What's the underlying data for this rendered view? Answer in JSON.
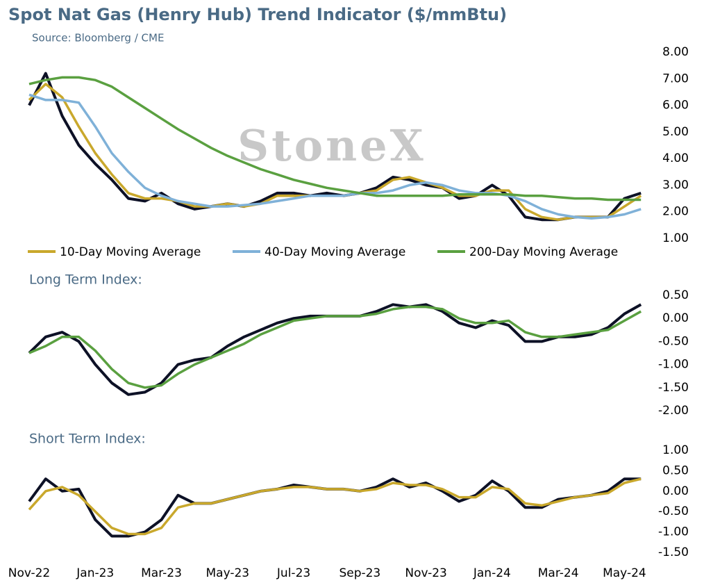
{
  "chart_data": [
    {
      "type": "line",
      "title": "Spot Nat Gas (Henry Hub) Trend Indicator ($/mmBtu)",
      "subtitle": "Source: Bloomberg / CME",
      "watermark": "StoneX",
      "x": [
        0,
        0.5,
        1,
        1.5,
        2,
        2.5,
        3,
        3.5,
        4,
        4.5,
        5,
        5.5,
        6,
        6.5,
        7,
        7.5,
        8,
        8.5,
        9,
        9.5,
        10,
        10.5,
        11,
        11.5,
        12,
        12.5,
        13,
        13.5,
        14,
        14.5,
        15,
        15.5,
        16,
        16.5,
        17,
        17.5,
        18,
        18.5
      ],
      "xlim": [
        0,
        18.6
      ],
      "ylim": [
        1,
        8
      ],
      "yticks": [
        {
          "value": 8,
          "label": "8.00"
        },
        {
          "value": 7,
          "label": "7.00"
        },
        {
          "value": 6,
          "label": "6.00"
        },
        {
          "value": 5,
          "label": "5.00"
        },
        {
          "value": 4,
          "label": "4.00"
        },
        {
          "value": 3,
          "label": "3.00"
        },
        {
          "value": 2,
          "label": "2.00"
        },
        {
          "value": 1,
          "label": "1.00"
        }
      ],
      "series": [
        {
          "color": "#0d1126",
          "values": [
            6.0,
            7.2,
            5.6,
            4.5,
            3.8,
            3.2,
            2.5,
            2.4,
            2.7,
            2.3,
            2.1,
            2.2,
            2.3,
            2.2,
            2.4,
            2.7,
            2.7,
            2.6,
            2.7,
            2.6,
            2.7,
            2.9,
            3.3,
            3.2,
            3.0,
            2.9,
            2.5,
            2.6,
            3.0,
            2.6,
            1.8,
            1.7,
            1.7,
            1.8,
            1.8,
            1.8,
            2.5,
            2.7
          ]
        },
        {
          "name": "10-Day Moving Average",
          "color": "#c9a82c",
          "values": [
            6.2,
            6.8,
            6.3,
            5.2,
            4.2,
            3.4,
            2.7,
            2.5,
            2.5,
            2.4,
            2.2,
            2.2,
            2.3,
            2.2,
            2.3,
            2.6,
            2.6,
            2.6,
            2.6,
            2.6,
            2.7,
            2.8,
            3.2,
            3.3,
            3.1,
            2.9,
            2.6,
            2.6,
            2.8,
            2.8,
            2.1,
            1.8,
            1.7,
            1.8,
            1.8,
            1.8,
            2.2,
            2.6
          ]
        },
        {
          "name": "40-Day Moving Average",
          "color": "#7fb1d8",
          "values": [
            6.4,
            6.2,
            6.2,
            6.1,
            5.2,
            4.2,
            3.5,
            2.9,
            2.6,
            2.4,
            2.3,
            2.2,
            2.2,
            2.25,
            2.3,
            2.4,
            2.5,
            2.6,
            2.6,
            2.6,
            2.7,
            2.7,
            2.8,
            3.0,
            3.1,
            3.0,
            2.8,
            2.7,
            2.7,
            2.6,
            2.4,
            2.1,
            1.9,
            1.8,
            1.75,
            1.8,
            1.9,
            2.1
          ]
        },
        {
          "name": "200-Day Moving Average",
          "color": "#5aa040",
          "values": [
            6.8,
            6.95,
            7.05,
            7.05,
            6.95,
            6.7,
            6.3,
            5.9,
            5.5,
            5.1,
            4.75,
            4.4,
            4.1,
            3.85,
            3.6,
            3.4,
            3.2,
            3.05,
            2.9,
            2.8,
            2.7,
            2.6,
            2.6,
            2.6,
            2.6,
            2.6,
            2.65,
            2.65,
            2.65,
            2.65,
            2.6,
            2.6,
            2.55,
            2.5,
            2.5,
            2.45,
            2.45,
            2.45
          ]
        }
      ]
    },
    {
      "type": "line",
      "title": "Long Term Index:",
      "x": [
        0,
        0.5,
        1,
        1.5,
        2,
        2.5,
        3,
        3.5,
        4,
        4.5,
        5,
        5.5,
        6,
        6.5,
        7,
        7.5,
        8,
        8.5,
        9,
        9.5,
        10,
        10.5,
        11,
        11.5,
        12,
        12.5,
        13,
        13.5,
        14,
        14.5,
        15,
        15.5,
        16,
        16.5,
        17,
        17.5,
        18,
        18.5
      ],
      "xlim": [
        0,
        18.6
      ],
      "ylim": [
        -2,
        0.5
      ],
      "yticks": [
        {
          "value": 0.5,
          "label": "0.50"
        },
        {
          "value": 0,
          "label": "0.00"
        },
        {
          "value": -0.5,
          "label": "-0.50"
        },
        {
          "value": -1,
          "label": "-1.00"
        },
        {
          "value": -1.5,
          "label": "-1.50"
        },
        {
          "value": -2,
          "label": "-2.00"
        }
      ],
      "series": [
        {
          "color": "#0d1126",
          "values": [
            -0.75,
            -0.4,
            -0.3,
            -0.5,
            -1.0,
            -1.4,
            -1.65,
            -1.6,
            -1.4,
            -1.0,
            -0.9,
            -0.85,
            -0.6,
            -0.4,
            -0.25,
            -0.1,
            0.0,
            0.05,
            0.05,
            0.05,
            0.05,
            0.15,
            0.3,
            0.25,
            0.3,
            0.15,
            -0.1,
            -0.2,
            -0.05,
            -0.15,
            -0.5,
            -0.5,
            -0.4,
            -0.4,
            -0.35,
            -0.2,
            0.1,
            0.3
          ]
        },
        {
          "color": "#5aa040",
          "values": [
            -0.75,
            -0.6,
            -0.4,
            -0.4,
            -0.7,
            -1.1,
            -1.4,
            -1.5,
            -1.45,
            -1.2,
            -1.0,
            -0.85,
            -0.7,
            -0.55,
            -0.35,
            -0.2,
            -0.05,
            0.0,
            0.05,
            0.05,
            0.05,
            0.1,
            0.2,
            0.25,
            0.25,
            0.2,
            0.0,
            -0.1,
            -0.1,
            -0.05,
            -0.3,
            -0.4,
            -0.4,
            -0.35,
            -0.3,
            -0.25,
            -0.05,
            0.15
          ]
        }
      ]
    },
    {
      "type": "line",
      "title": "Short Term Index:",
      "x": [
        0,
        0.5,
        1,
        1.5,
        2,
        2.5,
        3,
        3.5,
        4,
        4.5,
        5,
        5.5,
        6,
        6.5,
        7,
        7.5,
        8,
        8.5,
        9,
        9.5,
        10,
        10.5,
        11,
        11.5,
        12,
        12.5,
        13,
        13.5,
        14,
        14.5,
        15,
        15.5,
        16,
        16.5,
        17,
        17.5,
        18,
        18.5
      ],
      "xlim": [
        0,
        18.6
      ],
      "ylim": [
        -1.5,
        1
      ],
      "xticks": [
        {
          "value": 0,
          "label": "Nov-22"
        },
        {
          "value": 2,
          "label": "Jan-23"
        },
        {
          "value": 4,
          "label": "Mar-23"
        },
        {
          "value": 6,
          "label": "May-23"
        },
        {
          "value": 8,
          "label": "Jul-23"
        },
        {
          "value": 10,
          "label": "Sep-23"
        },
        {
          "value": 12,
          "label": "Nov-23"
        },
        {
          "value": 14,
          "label": "Jan-24"
        },
        {
          "value": 16,
          "label": "Mar-24"
        },
        {
          "value": 18,
          "label": "May-24"
        }
      ],
      "yticks": [
        {
          "value": 1,
          "label": "1.00"
        },
        {
          "value": 0.5,
          "label": "0.50"
        },
        {
          "value": 0,
          "label": "0.00"
        },
        {
          "value": -0.5,
          "label": "-0.50"
        },
        {
          "value": -1,
          "label": "-1.00"
        },
        {
          "value": -1.5,
          "label": "-1.50"
        }
      ],
      "series": [
        {
          "color": "#0d1126",
          "values": [
            -0.25,
            0.3,
            0.0,
            0.05,
            -0.7,
            -1.1,
            -1.1,
            -1.0,
            -0.7,
            -0.1,
            -0.3,
            -0.3,
            -0.2,
            -0.1,
            0.0,
            0.05,
            0.15,
            0.1,
            0.05,
            0.05,
            0.0,
            0.1,
            0.3,
            0.1,
            0.2,
            0.0,
            -0.25,
            -0.1,
            0.25,
            0.0,
            -0.4,
            -0.4,
            -0.2,
            -0.15,
            -0.1,
            0.0,
            0.3,
            0.3
          ]
        },
        {
          "color": "#c9a82c",
          "values": [
            -0.45,
            0.0,
            0.1,
            -0.1,
            -0.5,
            -0.9,
            -1.05,
            -1.05,
            -0.9,
            -0.4,
            -0.3,
            -0.3,
            -0.2,
            -0.1,
            0.0,
            0.05,
            0.1,
            0.1,
            0.05,
            0.05,
            0.0,
            0.05,
            0.2,
            0.15,
            0.15,
            0.05,
            -0.15,
            -0.15,
            0.1,
            0.05,
            -0.3,
            -0.35,
            -0.25,
            -0.15,
            -0.1,
            -0.05,
            0.2,
            0.3
          ]
        }
      ]
    }
  ]
}
